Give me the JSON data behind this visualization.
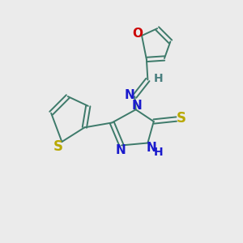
{
  "bg_color": "#ebebeb",
  "atom_colors": {
    "C": "#3d7a6a",
    "N": "#1a1acc",
    "O": "#cc0000",
    "S_yellow": "#b8a800",
    "S_teal": "#3d7a6a",
    "H": "#4a8080"
  },
  "bond_color": "#3d7a6a",
  "lw": 1.4
}
